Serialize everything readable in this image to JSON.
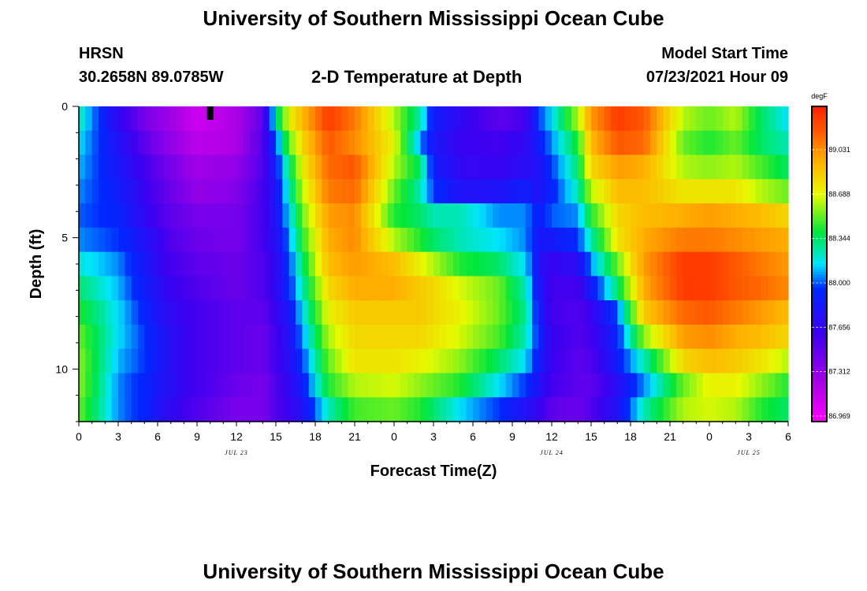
{
  "titles": {
    "top": "University of Southern Mississippi Ocean Cube",
    "bottom": "University of Southern Mississippi Ocean Cube"
  },
  "station": {
    "name": "HRSN",
    "coords": "30.2658N  89.0785W"
  },
  "plot_title": "2-D Temperature at Depth",
  "model": {
    "label": "Model Start Time",
    "value": "07/23/2021 Hour 09"
  },
  "chart_data": {
    "type": "heatmap",
    "title": "2-D Temperature at Depth",
    "xlabel": "Forecast Time(Z)",
    "ylabel": "Depth (ft)",
    "x_range_hours": [
      0,
      54
    ],
    "y_range_ft": [
      0,
      12
    ],
    "x_ticks": [
      "0",
      "3",
      "6",
      "9",
      "12",
      "15",
      "18",
      "21",
      "0",
      "3",
      "6",
      "9",
      "12",
      "15",
      "18",
      "21",
      "0",
      "3",
      "6"
    ],
    "y_ticks": [
      {
        "value": 0,
        "label": "0"
      },
      {
        "value": 5,
        "label": "5"
      },
      {
        "value": 10,
        "label": "10"
      }
    ],
    "date_labels": [
      {
        "hour": 12,
        "label": "JUL 23"
      },
      {
        "hour": 36,
        "label": "JUL 24"
      },
      {
        "hour": 51,
        "label": "JUL 25"
      }
    ],
    "current_time_hour": 10,
    "colorbar": {
      "unit": "degF",
      "min": 86.8,
      "max": 89.4,
      "labels": [
        "89.031",
        "88.688",
        "88.344",
        "88.000",
        "87.656",
        "87.312",
        "86.969"
      ]
    },
    "depth_levels_ft": [
      0,
      1,
      2,
      3,
      4,
      5,
      6,
      7,
      8,
      9,
      10,
      11,
      12
    ],
    "field_model": "temperature field (degF) approximated by anchor profiles over depth levels 0-12 ft",
    "profiles": [
      {
        "hour": 0,
        "temps": [
          88.2,
          88.1,
          88.05,
          88.0,
          87.95,
          88.0,
          88.15,
          88.3,
          88.4,
          88.5,
          88.55,
          88.55,
          88.5
        ]
      },
      {
        "hour": 3,
        "temps": [
          87.6,
          87.7,
          87.75,
          87.8,
          87.85,
          87.9,
          88.0,
          88.05,
          88.1,
          88.1,
          88.05,
          88.0,
          88.0
        ]
      },
      {
        "hour": 5,
        "temps": [
          87.3,
          87.4,
          87.5,
          87.55,
          87.6,
          87.7,
          87.75,
          87.8,
          87.85,
          87.9,
          87.9,
          87.85,
          87.85
        ]
      },
      {
        "hour": 7,
        "temps": [
          87.15,
          87.2,
          87.3,
          87.35,
          87.4,
          87.45,
          87.5,
          87.55,
          87.6,
          87.65,
          87.65,
          87.65,
          87.6
        ]
      },
      {
        "hour": 9,
        "temps": [
          86.98,
          87.05,
          87.15,
          87.2,
          87.3,
          87.35,
          87.4,
          87.45,
          87.5,
          87.5,
          87.5,
          87.5,
          87.45
        ]
      },
      {
        "hour": 12,
        "temps": [
          87.1,
          87.1,
          87.2,
          87.25,
          87.3,
          87.3,
          87.35,
          87.35,
          87.4,
          87.4,
          87.4,
          87.35,
          87.3
        ]
      },
      {
        "hour": 14,
        "temps": [
          87.4,
          87.45,
          87.45,
          87.5,
          87.5,
          87.5,
          87.45,
          87.45,
          87.4,
          87.35,
          87.35,
          87.3,
          87.3
        ]
      },
      {
        "hour": 15,
        "temps": [
          88.2,
          87.9,
          87.8,
          87.7,
          87.7,
          87.65,
          87.6,
          87.6,
          87.55,
          87.5,
          87.5,
          87.45,
          87.45
        ]
      },
      {
        "hour": 16,
        "temps": [
          88.7,
          88.5,
          88.3,
          88.2,
          88.1,
          88.0,
          87.9,
          87.85,
          87.75,
          87.7,
          87.65,
          87.6,
          87.55
        ]
      },
      {
        "hour": 17,
        "temps": [
          88.9,
          88.8,
          88.7,
          88.6,
          88.5,
          88.4,
          88.3,
          88.2,
          88.1,
          88.0,
          87.9,
          87.8,
          87.7
        ]
      },
      {
        "hour": 19,
        "temps": [
          89.3,
          89.2,
          89.15,
          89.1,
          89.0,
          88.95,
          88.9,
          88.8,
          88.7,
          88.6,
          88.5,
          88.4,
          88.2
        ]
      },
      {
        "hour": 21,
        "temps": [
          89.1,
          89.05,
          89.2,
          89.15,
          89.05,
          89.05,
          89.0,
          88.95,
          88.85,
          88.8,
          88.75,
          88.6,
          88.45
        ]
      },
      {
        "hour": 24,
        "temps": [
          88.6,
          88.7,
          88.6,
          88.5,
          88.4,
          88.6,
          88.9,
          88.95,
          88.85,
          88.8,
          88.75,
          88.65,
          88.5
        ]
      },
      {
        "hour": 26,
        "temps": [
          88.2,
          88.0,
          88.3,
          88.2,
          88.3,
          88.4,
          88.7,
          88.85,
          88.85,
          88.8,
          88.7,
          88.55,
          88.4
        ]
      },
      {
        "hour": 27,
        "temps": [
          87.8,
          87.75,
          87.8,
          87.9,
          88.2,
          88.3,
          88.6,
          88.8,
          88.8,
          88.75,
          88.65,
          88.5,
          88.3
        ]
      },
      {
        "hour": 29,
        "temps": [
          87.6,
          87.55,
          87.6,
          87.7,
          88.2,
          88.2,
          88.4,
          88.65,
          88.7,
          88.65,
          88.55,
          88.4,
          88.1
        ]
      },
      {
        "hour": 32,
        "temps": [
          87.4,
          87.5,
          87.55,
          87.7,
          88.0,
          88.1,
          88.3,
          88.5,
          88.5,
          88.45,
          88.3,
          88.1,
          87.9
        ]
      },
      {
        "hour": 34,
        "temps": [
          87.5,
          87.6,
          87.65,
          87.8,
          88.0,
          88.0,
          88.1,
          88.2,
          88.25,
          88.2,
          88.1,
          87.9,
          87.7
        ]
      },
      {
        "hour": 35,
        "temps": [
          87.9,
          87.8,
          87.7,
          87.7,
          87.8,
          87.75,
          87.7,
          87.75,
          87.8,
          87.85,
          87.8,
          87.7,
          87.55
        ]
      },
      {
        "hour": 36,
        "temps": [
          88.1,
          88.0,
          87.9,
          87.85,
          87.95,
          87.75,
          87.55,
          87.5,
          87.5,
          87.55,
          87.55,
          87.5,
          87.4
        ]
      },
      {
        "hour": 38,
        "temps": [
          88.6,
          88.4,
          88.3,
          88.2,
          88.0,
          87.9,
          87.65,
          87.5,
          87.45,
          87.45,
          87.4,
          87.4,
          87.35
        ]
      },
      {
        "hour": 39,
        "temps": [
          89.0,
          88.9,
          88.8,
          88.6,
          88.4,
          88.2,
          88.0,
          87.75,
          87.55,
          87.5,
          87.45,
          87.4,
          87.45
        ]
      },
      {
        "hour": 41,
        "temps": [
          89.3,
          89.2,
          89.0,
          88.9,
          88.8,
          88.75,
          88.5,
          88.3,
          87.95,
          87.85,
          87.8,
          87.65,
          87.7
        ]
      },
      {
        "hour": 43,
        "temps": [
          89.2,
          89.15,
          88.95,
          88.9,
          88.9,
          88.95,
          89.0,
          88.95,
          88.85,
          88.55,
          88.2,
          88.0,
          88.2
        ]
      },
      {
        "hour": 46,
        "temps": [
          88.6,
          88.5,
          88.6,
          88.75,
          88.95,
          89.1,
          89.3,
          89.3,
          89.15,
          89.0,
          88.8,
          88.5,
          88.6
        ]
      },
      {
        "hour": 48,
        "temps": [
          88.5,
          88.4,
          88.55,
          88.75,
          89.0,
          89.1,
          89.3,
          89.3,
          89.2,
          89.05,
          88.9,
          88.7,
          88.65
        ]
      },
      {
        "hour": 50,
        "temps": [
          88.6,
          88.5,
          88.6,
          88.75,
          88.95,
          89.05,
          89.2,
          89.2,
          89.1,
          88.95,
          88.85,
          88.7,
          88.6
        ]
      },
      {
        "hour": 52,
        "temps": [
          88.3,
          88.3,
          88.45,
          88.6,
          88.9,
          89.0,
          89.1,
          89.15,
          89.0,
          88.9,
          88.75,
          88.55,
          88.4
        ]
      },
      {
        "hour": 54,
        "temps": [
          88.1,
          88.2,
          88.3,
          88.5,
          88.8,
          88.95,
          89.0,
          89.05,
          88.9,
          88.8,
          88.6,
          88.4,
          88.3
        ]
      }
    ]
  }
}
